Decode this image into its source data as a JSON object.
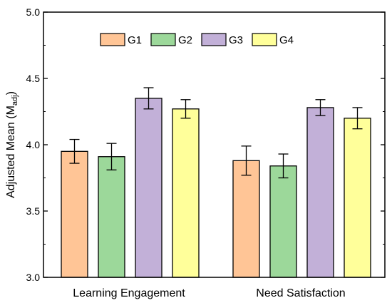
{
  "chart_data": {
    "type": "bar",
    "categories": [
      "Learning Engagement",
      "Need Satisfaction"
    ],
    "series": [
      {
        "name": "G1",
        "color": "#ffc596",
        "values": [
          3.95,
          3.88
        ],
        "errors": [
          0.09,
          0.11
        ]
      },
      {
        "name": "G2",
        "color": "#9cd89a",
        "values": [
          3.91,
          3.84
        ],
        "errors": [
          0.1,
          0.09
        ]
      },
      {
        "name": "G3",
        "color": "#c2b0d8",
        "values": [
          4.35,
          4.28
        ],
        "errors": [
          0.08,
          0.06
        ]
      },
      {
        "name": "G4",
        "color": "#ffff9a",
        "values": [
          4.27,
          4.2
        ],
        "errors": [
          0.07,
          0.08
        ]
      }
    ],
    "ylabel_main": "Adjusted Mean (M",
    "ylabel_sub": "adj",
    "ylabel_close": ")",
    "ylim": [
      3.0,
      5.0
    ],
    "yticks": [
      "3.0",
      "3.5",
      "4.0",
      "4.5",
      "5.0"
    ],
    "legend_position": "top-center",
    "grid": false
  }
}
